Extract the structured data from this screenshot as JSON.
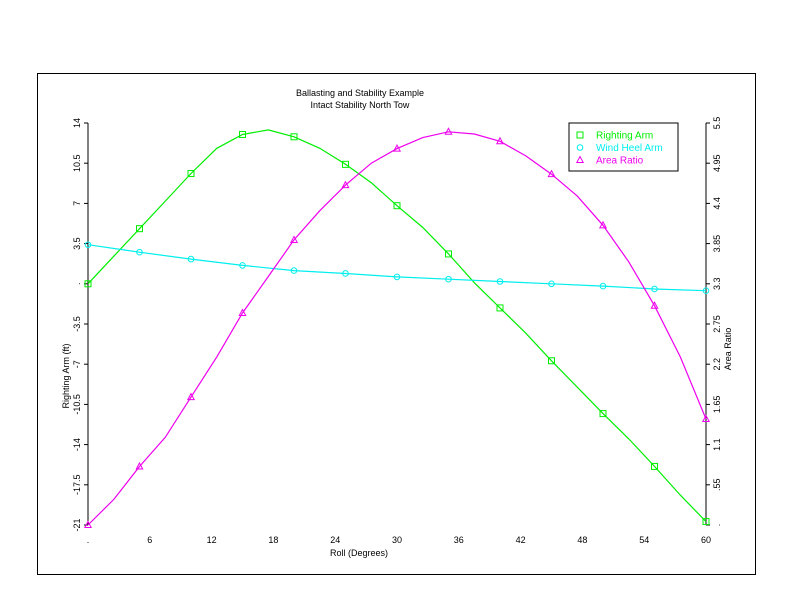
{
  "chart_data": {
    "type": "line",
    "title": "Ballasting and Stability Example",
    "subtitle": "Intact Stability North Tow",
    "xlabel": "Roll (Degrees)",
    "ylabel": "Righting Arm (ft)",
    "y2label": "Area Ratio",
    "xlim": [
      0,
      60
    ],
    "ylim": [
      -21,
      14
    ],
    "y2lim": [
      0,
      5.5
    ],
    "x_ticks": [
      0,
      6,
      12,
      18,
      24,
      30,
      36,
      42,
      48,
      54,
      60
    ],
    "x_tick_labels": [
      ".",
      "6",
      "12",
      "18",
      "24",
      "30",
      "36",
      "42",
      "48",
      "54",
      "60"
    ],
    "y_ticks": [
      14,
      10.5,
      7,
      3.5,
      0,
      -3.5,
      -7,
      -10.5,
      -14,
      -17.5,
      -21
    ],
    "y_tick_labels": [
      "14",
      "10.5",
      "7",
      "3.5",
      ".",
      "-3.5",
      "-7",
      "-10.5",
      "-14",
      "-17.5",
      "-21"
    ],
    "y2_ticks": [
      5.5,
      4.95,
      4.4,
      3.85,
      3.3,
      2.75,
      2.2,
      1.65,
      1.1,
      0.55,
      0
    ],
    "y2_tick_labels": [
      "5.5",
      "4.95",
      "4.4",
      "3.85",
      "3.3",
      "2.75",
      "2.2",
      "1.65",
      "1.1",
      ".55",
      "."
    ],
    "legend_position": "top-right",
    "grid": false,
    "series": [
      {
        "name": "Righting Arm",
        "axis": "left",
        "color": "#00ee00",
        "marker": "square",
        "x": [
          0,
          2.5,
          5,
          7.5,
          10,
          12.5,
          15,
          17.5,
          20,
          22.5,
          25,
          27.5,
          30,
          32.5,
          35,
          37.5,
          40,
          42.5,
          45,
          47.5,
          50,
          52.5,
          55,
          57.5,
          60
        ],
        "y": [
          0,
          2.4,
          4.8,
          7.2,
          9.6,
          11.8,
          13.0,
          13.4,
          12.8,
          11.8,
          10.4,
          8.8,
          6.8,
          4.9,
          2.6,
          0.1,
          -2.1,
          -4.3,
          -6.7,
          -9.0,
          -11.3,
          -13.5,
          -15.9,
          -18.4,
          -20.7
        ],
        "marker_x": [
          0,
          5,
          10,
          15,
          20,
          25,
          30,
          35,
          40,
          45,
          50,
          55,
          60
        ],
        "marker_y": [
          0,
          4.8,
          9.6,
          13.0,
          12.8,
          10.4,
          6.8,
          2.6,
          -2.1,
          -6.7,
          -11.3,
          -15.9,
          -20.7
        ]
      },
      {
        "name": "Wind Heel Arm",
        "axis": "left",
        "color": "#00eeee",
        "marker": "circle",
        "x": [
          0,
          5,
          10,
          15,
          20,
          25,
          30,
          35,
          40,
          45,
          50,
          55,
          60
        ],
        "y": [
          3.4,
          2.75,
          2.15,
          1.6,
          1.15,
          0.9,
          0.6,
          0.4,
          0.2,
          0.0,
          -0.2,
          -0.45,
          -0.6
        ],
        "marker_x": [
          0,
          5,
          10,
          15,
          20,
          25,
          30,
          35,
          40,
          45,
          50,
          55,
          60
        ],
        "marker_y": [
          3.4,
          2.75,
          2.15,
          1.6,
          1.15,
          0.9,
          0.6,
          0.4,
          0.2,
          0.0,
          -0.2,
          -0.45,
          -0.6
        ]
      },
      {
        "name": "Area Ratio",
        "axis": "right",
        "color": "#ee00ee",
        "marker": "triangle",
        "x": [
          0,
          2.5,
          5,
          7.5,
          10,
          12.5,
          15,
          17.5,
          20,
          22.5,
          25,
          27.5,
          30,
          32.5,
          35,
          37.5,
          40,
          42.5,
          45,
          47.5,
          50,
          52.5,
          55,
          57.5,
          60
        ],
        "y": [
          0,
          0.35,
          0.8,
          1.2,
          1.75,
          2.3,
          2.9,
          3.4,
          3.9,
          4.3,
          4.65,
          4.95,
          5.15,
          5.3,
          5.38,
          5.35,
          5.25,
          5.05,
          4.8,
          4.5,
          4.1,
          3.6,
          3.0,
          2.3,
          1.45
        ],
        "marker_x": [
          0,
          5,
          10,
          15,
          20,
          25,
          30,
          35,
          40,
          45,
          50,
          55,
          60
        ],
        "marker_y": [
          0,
          0.8,
          1.75,
          2.9,
          3.9,
          4.65,
          5.15,
          5.38,
          5.25,
          4.8,
          4.1,
          3.0,
          1.45
        ]
      }
    ]
  }
}
